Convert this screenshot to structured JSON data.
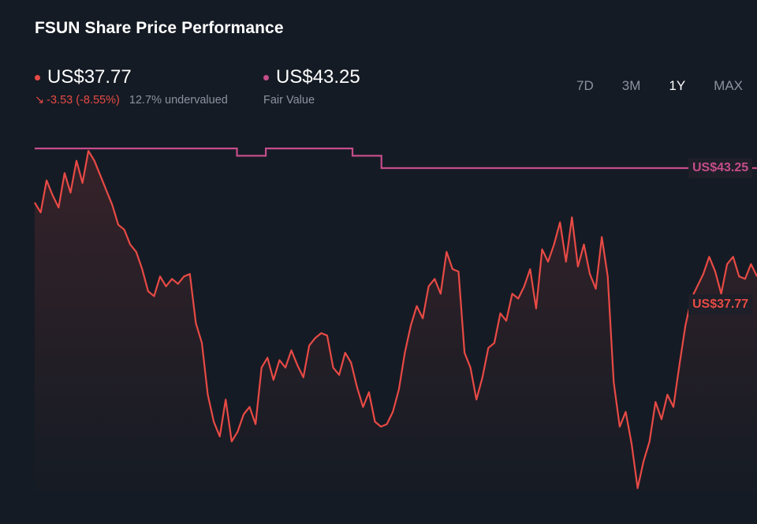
{
  "title": "FSUN Share Price Performance",
  "current": {
    "price": "US$37.77",
    "arrow": "↘",
    "change": "-3.53 (-8.55%)",
    "valuation": "12.7% undervalued"
  },
  "fair_value": {
    "price": "US$43.25",
    "label": "Fair Value"
  },
  "periods": [
    {
      "label": "7D"
    },
    {
      "label": "3M"
    },
    {
      "label": "1Y"
    },
    {
      "label": "MAX"
    }
  ],
  "active_period": "1Y",
  "colors": {
    "background": "#151b24",
    "price_line": "#e84a45",
    "fair_value_line": "#c54d8a"
  },
  "chart_data": {
    "type": "line",
    "ylim": [
      30,
      45
    ],
    "grid": false,
    "legend": "none",
    "series": [
      {
        "name": "Share Price",
        "values": [
          41.9,
          41.5,
          42.8,
          42.2,
          41.7,
          43.1,
          42.3,
          43.6,
          42.7,
          44.0,
          43.6,
          43.0,
          42.4,
          41.8,
          41.0,
          40.8,
          40.2,
          39.9,
          39.2,
          38.3,
          38.1,
          38.9,
          38.5,
          38.8,
          38.6,
          38.9,
          39.0,
          37.0,
          36.2,
          34.1,
          33.0,
          32.4,
          33.9,
          32.2,
          32.6,
          33.3,
          33.6,
          32.9,
          35.2,
          35.6,
          34.7,
          35.5,
          35.2,
          35.9,
          35.3,
          34.8,
          36.1,
          36.4,
          36.6,
          36.5,
          35.2,
          34.9,
          35.8,
          35.4,
          34.4,
          33.6,
          34.2,
          33.0,
          32.8,
          32.9,
          33.4,
          34.3,
          35.8,
          36.9,
          37.7,
          37.2,
          38.5,
          38.8,
          38.2,
          39.9,
          39.2,
          39.1,
          35.8,
          35.2,
          33.9,
          34.8,
          36.0,
          36.2,
          37.4,
          37.1,
          38.2,
          38.0,
          38.5,
          39.2,
          37.6,
          40.0,
          39.5,
          40.2,
          41.1,
          39.5,
          41.3,
          39.3,
          40.2,
          39.0,
          38.4,
          40.5,
          38.9,
          34.6,
          32.8,
          33.4,
          32.1,
          30.3,
          31.4,
          32.2,
          33.8,
          33.1,
          34.1,
          33.6,
          35.3,
          36.9,
          38.0,
          38.5,
          39.0,
          39.7,
          39.1,
          38.2,
          39.4,
          39.7,
          38.9,
          38.8,
          39.4,
          38.9
        ]
      },
      {
        "name": "Fair Value",
        "values": [
          44.1,
          44.1,
          44.1,
          44.1,
          44.1,
          44.1,
          44.1,
          43.8,
          44.1,
          44.1,
          44.1,
          43.8,
          43.3,
          43.3,
          43.3,
          43.3,
          43.3,
          43.3,
          43.3,
          43.3,
          43.3,
          43.3,
          43.3,
          43.3,
          43.3,
          43.3
        ]
      }
    ]
  }
}
